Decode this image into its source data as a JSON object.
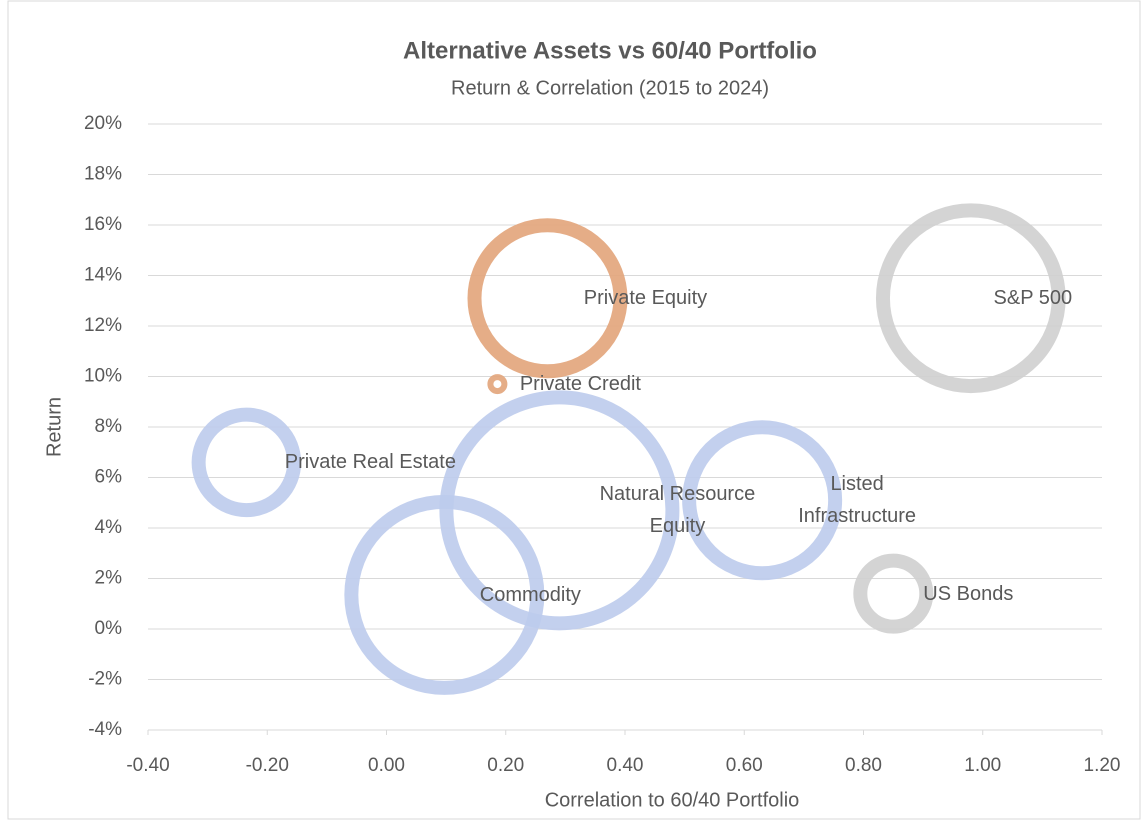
{
  "chart_data": {
    "type": "bubble",
    "title": "Alternative Assets vs 60/40 Portfolio",
    "subtitle": "Return & Correlation (2015 to 2024)",
    "x_label": "Correlation to 60/40 Portfolio",
    "y_label": "Return",
    "labels": [
      "Private Equity",
      "Private Credit",
      "Private Real Estate",
      "Commodity",
      "Natural Resource Equity",
      "Listed Infrastructure",
      "US Bonds",
      "S&P 500"
    ],
    "x": [
      0.27,
      0.186,
      -0.235,
      0.097,
      0.29,
      0.63,
      0.85,
      0.98
    ],
    "values": [
      13.1,
      9.7,
      6.6,
      1.35,
      4.7,
      5.1,
      1.4,
      13.1
    ],
    "sizes": [
      64,
      1,
      30,
      100,
      144,
      64,
      16,
      90
    ],
    "colors": [
      "#e2a47a",
      "#e2a47a",
      "#bccbec",
      "#bccbec",
      "#bccbec",
      "#bccbec",
      "#cfcfcf",
      "#cfcfcf"
    ],
    "xlim": [
      -0.4,
      1.2
    ],
    "xticks": [
      {
        "value": -0.4,
        "label": "-0.40"
      },
      {
        "value": -0.2,
        "label": "-0.20"
      },
      {
        "value": 0,
        "label": "0.00"
      },
      {
        "value": 0.2,
        "label": "0.20"
      },
      {
        "value": 0.4,
        "label": "0.40"
      },
      {
        "value": 0.6,
        "label": "0.60"
      },
      {
        "value": 0.8,
        "label": "0.80"
      },
      {
        "value": 1.0,
        "label": "1.00"
      },
      {
        "value": 1.2,
        "label": "1.20"
      }
    ],
    "ylim": [
      -4,
      20
    ],
    "yticks": [
      {
        "value": -4,
        "label": "-4%"
      },
      {
        "value": -2,
        "label": "-2%"
      },
      {
        "value": 0,
        "label": "0%"
      },
      {
        "value": 2,
        "label": "2%"
      },
      {
        "value": 4,
        "label": "4%"
      },
      {
        "value": 6,
        "label": "6%"
      },
      {
        "value": 8,
        "label": "8%"
      },
      {
        "value": 10,
        "label": "10%"
      },
      {
        "value": 12,
        "label": "12%"
      },
      {
        "value": 14,
        "label": "14%"
      },
      {
        "value": 16,
        "label": "16%"
      },
      {
        "value": 18,
        "label": "18%"
      },
      {
        "value": 20,
        "label": "20%"
      }
    ],
    "grid": true
  }
}
